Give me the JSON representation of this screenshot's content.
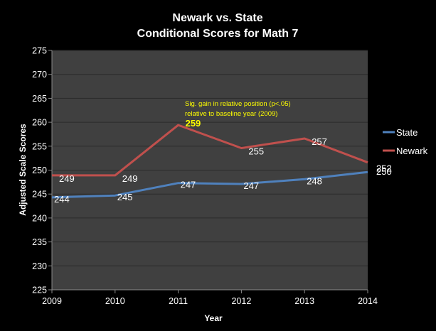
{
  "chart_data": {
    "type": "line",
    "title": [
      "Newark vs. State",
      "Conditional Scores for Math 7"
    ],
    "xlabel": "Year",
    "ylabel": "Adjusted Scale Scores",
    "x": [
      "2009",
      "2010",
      "2011",
      "2012",
      "2013",
      "2014"
    ],
    "ylim": [
      225,
      275
    ],
    "yticks": [
      225,
      230,
      235,
      240,
      245,
      250,
      255,
      260,
      265,
      270,
      275
    ],
    "grid": true,
    "legend_position": "right",
    "series": [
      {
        "name": "State",
        "color": "#4f81bd",
        "values": [
          244.3,
          244.7,
          247.3,
          247.1,
          248.1,
          249.6
        ],
        "labels": [
          "244",
          "245",
          "247",
          "247",
          "248",
          "250"
        ]
      },
      {
        "name": "Newark",
        "color": "#c0504d",
        "values": [
          248.9,
          248.9,
          259.4,
          254.6,
          256.6,
          251.6
        ],
        "labels": [
          "249",
          "249",
          "259",
          "255",
          "257",
          "252"
        ],
        "highlight_index": 2,
        "highlight_color": "#ffff00"
      }
    ],
    "annotation": [
      "Sig. gain in relative position (p<.05)",
      "relative to baseline year (2009)"
    ]
  }
}
